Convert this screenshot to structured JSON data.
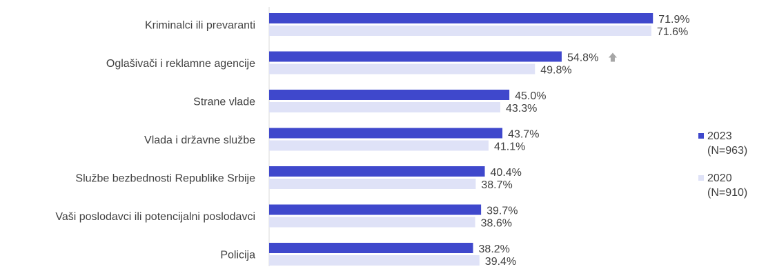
{
  "chart_data": {
    "type": "bar",
    "orientation": "horizontal",
    "categories": [
      "Kriminalci ili prevaranti",
      "Oglašivači i reklamne agencije",
      "Strane vlade",
      "Vlada i državne službe",
      "Službe bezbednosti Republike Srbije",
      "Vaši poslodavci ili potencijalni poslodavci",
      "Policija"
    ],
    "series": [
      {
        "name": "2023 (N=963)",
        "legend_lines": [
          "2023",
          "(N=963)"
        ],
        "color": "#3f48cc",
        "values": [
          71.9,
          54.8,
          45.0,
          43.7,
          40.4,
          39.7,
          38.2
        ],
        "labels": [
          "71.9%",
          "54.8%",
          "45.0%",
          "43.7%",
          "40.4%",
          "39.7%",
          "38.2%"
        ]
      },
      {
        "name": "2020 (N=910)",
        "legend_lines": [
          "2020",
          "(N=910)"
        ],
        "color": "#dfe2f7",
        "values": [
          71.6,
          49.8,
          43.3,
          41.1,
          38.7,
          38.6,
          39.4
        ],
        "labels": [
          "71.6%",
          "49.8%",
          "43.3%",
          "41.1%",
          "38.7%",
          "38.6%",
          "39.4%"
        ]
      }
    ],
    "annotations": [
      {
        "category": "Oglašivači i reklamne agencije",
        "icon": "up-arrow-icon",
        "color": "#a6a6a6"
      }
    ],
    "xlim": [
      0,
      72
    ],
    "grid": false,
    "legend": "right",
    "axis_color": "#d9d9d9"
  }
}
